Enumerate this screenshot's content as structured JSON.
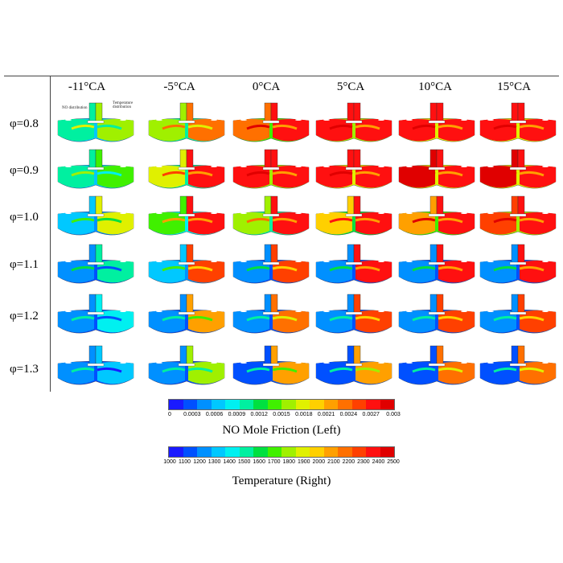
{
  "columns": [
    "-11°CA",
    "-5°CA",
    "0°CA",
    "5°CA",
    "10°CA",
    "15°CA"
  ],
  "rows": [
    "φ=0.8",
    "φ=0.9",
    "φ=1.0",
    "φ=1.1",
    "φ=1.2",
    "φ=1.3"
  ],
  "annotations": {
    "no_distribution": "NO distribution",
    "temperature_distribution": "Temperature distribution"
  },
  "colorbar_no": {
    "label": "NO Mole Friction (Left)",
    "ticks": [
      "0",
      "0.0003",
      "0.0006",
      "0.0009",
      "0.0012",
      "0.0015",
      "0.0018",
      "0.0021",
      "0.0024",
      "0.0027",
      "0.003"
    ]
  },
  "colorbar_temp": {
    "label": "Temperature (Right)",
    "ticks": [
      "1000",
      "1100",
      "1200",
      "1300",
      "1400",
      "1500",
      "1600",
      "1700",
      "1800",
      "1900",
      "2000",
      "2100",
      "2200",
      "2300",
      "2400",
      "2500"
    ]
  },
  "palette": [
    "#1a1aff",
    "#0050ff",
    "#0090ff",
    "#00c8ff",
    "#00f0f0",
    "#00f0a0",
    "#00e040",
    "#40f000",
    "#a0f000",
    "#e0f000",
    "#ffd000",
    "#ffa000",
    "#ff7000",
    "#ff4000",
    "#ff1010",
    "#e00000"
  ],
  "levels": {
    "no": [
      [
        0.35,
        0.55,
        0.8,
        0.9,
        0.95,
        0.95
      ],
      [
        0.3,
        0.6,
        0.9,
        0.95,
        0.97,
        0.97
      ],
      [
        0.2,
        0.45,
        0.55,
        0.65,
        0.75,
        0.85
      ],
      [
        0.15,
        0.2,
        0.15,
        0.15,
        0.15,
        0.15
      ],
      [
        0.1,
        0.1,
        0.1,
        0.1,
        0.1,
        0.1
      ],
      [
        0.1,
        0.1,
        0.08,
        0.08,
        0.08,
        0.08
      ]
    ],
    "temp": [
      [
        0.55,
        0.8,
        0.92,
        0.93,
        0.93,
        0.93
      ],
      [
        0.45,
        0.9,
        0.95,
        0.96,
        0.96,
        0.96
      ],
      [
        0.6,
        0.9,
        0.92,
        0.93,
        0.94,
        0.95
      ],
      [
        0.3,
        0.85,
        0.88,
        0.9,
        0.9,
        0.9
      ],
      [
        0.25,
        0.7,
        0.8,
        0.85,
        0.85,
        0.85
      ],
      [
        0.2,
        0.55,
        0.7,
        0.75,
        0.78,
        0.8
      ]
    ]
  }
}
